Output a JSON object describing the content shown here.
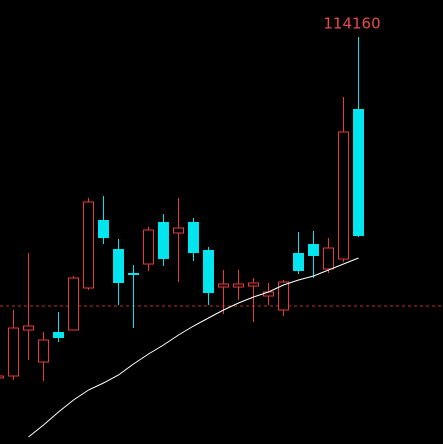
{
  "chart_data": {
    "type": "candlestick",
    "open": [
      110750,
      110770,
      111230,
      110910,
      111210,
      111230,
      111650,
      112330,
      112040,
      111800,
      111890,
      112310,
      112200,
      112310,
      112030,
      111660,
      111660,
      111670,
      111570,
      111430,
      112000,
      112090,
      111840,
      111940,
      113440
    ],
    "close": [
      110770,
      111250,
      111270,
      111130,
      111150,
      111750,
      112510,
      112150,
      111700,
      111780,
      112230,
      111940,
      112250,
      112000,
      111600,
      111690,
      111690,
      111700,
      111610,
      111710,
      111820,
      111970,
      112050,
      113210,
      112170
    ],
    "high": [
      110830,
      111430,
      112000,
      111210,
      111410,
      111770,
      112550,
      112570,
      112140,
      111880,
      112260,
      112390,
      112550,
      112350,
      112060,
      111830,
      111830,
      111750,
      111700,
      111730,
      112210,
      112220,
      112150,
      113560,
      114160
    ],
    "low": [
      110730,
      110730,
      110930,
      110720,
      111110,
      111230,
      111630,
      112090,
      111480,
      111250,
      111820,
      111870,
      111710,
      111920,
      111480,
      111390,
      111530,
      111310,
      111480,
      111370,
      111790,
      111750,
      111800,
      111910,
      112160
    ],
    "ma": [
      null,
      null,
      110160,
      110280,
      110410,
      110530,
      110630,
      110700,
      110780,
      110890,
      110990,
      111080,
      111180,
      111270,
      111350,
      111430,
      111500,
      111560,
      111610,
      111680,
      111730,
      111770,
      111830,
      111890,
      111950
    ],
    "reference_line": 111470,
    "ylim": [
      110090,
      114530
    ],
    "up_color": "#e83a3a",
    "down_color": "#00e5ee",
    "ma_color": "#ffffff",
    "reference_color": "#c0302a",
    "label_color": "#e84a4a"
  }
}
